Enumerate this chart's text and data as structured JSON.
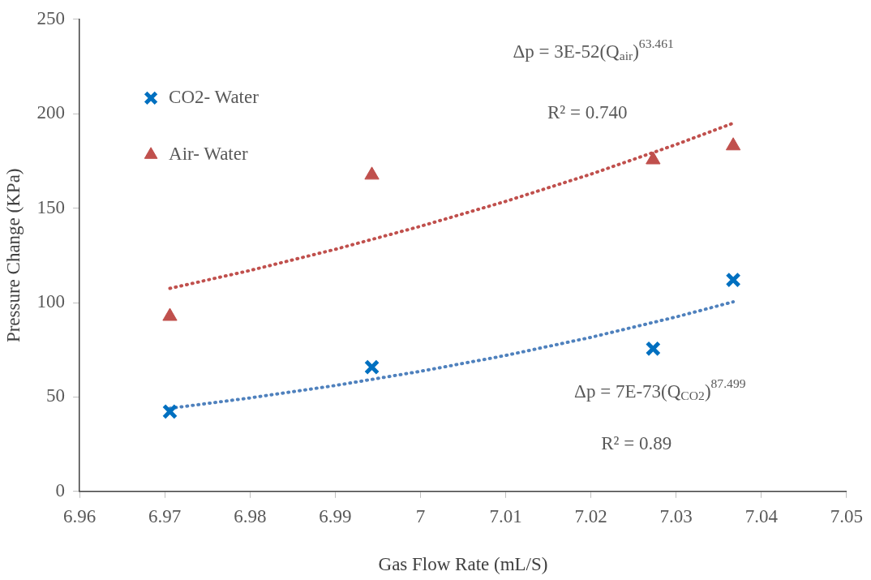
{
  "chart_data": {
    "type": "scatter",
    "xlabel": "Gas Flow Rate (mL/S)",
    "ylabel": "Pressure Change (KPa)",
    "xlim": [
      6.96,
      7.05
    ],
    "xticks": [
      6.96,
      6.97,
      6.98,
      6.99,
      7,
      7.01,
      7.02,
      7.03,
      7.04,
      7.05
    ],
    "ylim": [
      0,
      250
    ],
    "yticks": [
      0,
      50,
      100,
      150,
      200,
      250
    ],
    "grid": false,
    "legend": "top left",
    "series": [
      {
        "name": "CO2- Water",
        "marker": "cross",
        "color": "#0070c0",
        "x": [
          6.9706,
          6.9943,
          7.0273,
          7.0367
        ],
        "values": [
          42.3,
          65.8,
          75.6,
          112
        ]
      },
      {
        "name": "Air- Water",
        "marker": "triangle",
        "color": "#c0504d",
        "x": [
          6.9706,
          6.9943,
          7.0273,
          7.0367
        ],
        "values": [
          92.7,
          167.5,
          175.6,
          183
        ]
      },
      {
        "type": "line",
        "line_style": "dotted",
        "marker": "none",
        "color": "#c0504d",
        "x": [
          6.9706,
          6.98,
          6.99,
          7,
          7.01,
          7.02,
          7.03,
          7.0367
        ],
        "values": [
          107.5,
          117,
          128.2,
          140.4,
          153.6,
          168,
          183.7,
          195
        ]
      },
      {
        "type": "line",
        "line_style": "dotted",
        "marker": "none",
        "color": "#4f81bd",
        "x": [
          6.9706,
          6.98,
          6.99,
          7,
          7.01,
          7.02,
          7.03,
          7.0367
        ],
        "values": [
          44,
          49.5,
          56.1,
          63.6,
          72,
          81.6,
          92.4,
          100.4
        ]
      }
    ],
    "annotations": [
      "Δp = 3E-52(Q$_{air}$)$^{63.461}$",
      "R² = 0.740",
      "Δp = 7E-73(Q$_{CO2}$)$^{87.499}$",
      "R² = 0.89"
    ]
  }
}
